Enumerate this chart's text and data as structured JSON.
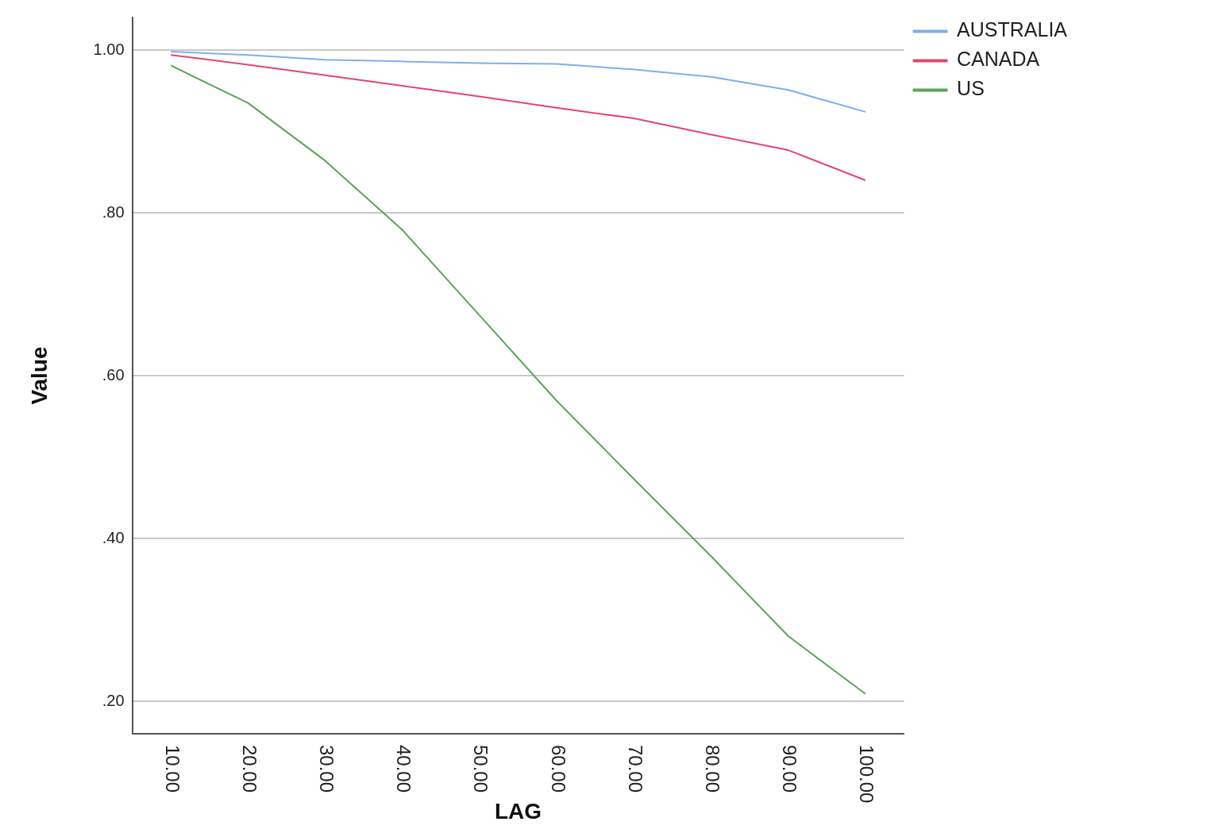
{
  "chart_data": {
    "type": "line",
    "xlabel": "LAG",
    "ylabel": "Value",
    "categories": [
      "10.00",
      "20.00",
      "30.00",
      "40.00",
      "50.00",
      "60.00",
      "70.00",
      "80.00",
      "90.00",
      "100.00"
    ],
    "series": [
      {
        "name": "AUSTRALIA",
        "color": "#7faef0",
        "values": [
          0.998,
          0.994,
          0.988,
          0.986,
          0.984,
          0.983,
          0.976,
          0.967,
          0.951,
          0.924
        ]
      },
      {
        "name": "CANADA",
        "color": "#e0486e",
        "values": [
          0.994,
          0.982,
          0.969,
          0.956,
          0.943,
          0.929,
          0.916,
          0.896,
          0.877,
          0.84
        ]
      },
      {
        "name": "US",
        "color": "#5ca35c",
        "values": [
          0.981,
          0.935,
          0.864,
          0.779,
          0.674,
          0.569,
          0.473,
          0.378,
          0.28,
          0.209
        ]
      }
    ],
    "ylim": [
      0.16,
      1.04
    ],
    "yticks": [
      {
        "value": 0.2,
        "label": ".20"
      },
      {
        "value": 0.4,
        "label": ".40"
      },
      {
        "value": 0.6,
        "label": ".60"
      },
      {
        "value": 0.8,
        "label": ".80"
      },
      {
        "value": 1.0,
        "label": "1.00"
      }
    ],
    "grid": "y",
    "legend": "top right",
    "marker": "none",
    "line_style": "solid"
  }
}
